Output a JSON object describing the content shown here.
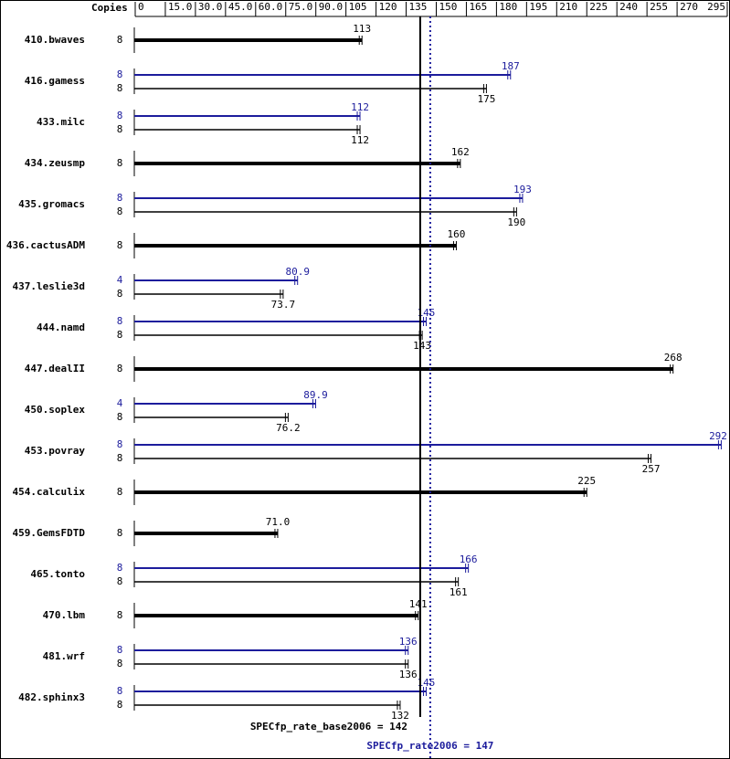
{
  "chart_data": {
    "type": "bar",
    "copies_label": "Copies",
    "categories": [
      "410.bwaves",
      "416.gamess",
      "433.milc",
      "434.zeusmp",
      "435.gromacs",
      "436.cactusADM",
      "437.leslie3d",
      "444.namd",
      "447.dealII",
      "450.soplex",
      "453.povray",
      "454.calculix",
      "459.GemsFDTD",
      "465.tonto",
      "470.lbm",
      "481.wrf",
      "482.sphinx3"
    ],
    "series": [
      {
        "color": "#1c1c9c",
        "copies": [
          null,
          8,
          8,
          null,
          8,
          null,
          4,
          8,
          null,
          4,
          8,
          null,
          null,
          8,
          null,
          8,
          8
        ],
        "values": [
          null,
          187,
          112,
          null,
          193,
          null,
          80.9,
          145,
          null,
          89.9,
          292,
          null,
          null,
          166,
          null,
          136,
          145
        ],
        "value_labels": [
          null,
          "187",
          "112",
          null,
          "193",
          null,
          "80.9",
          "145",
          null,
          "89.9",
          "292",
          null,
          null,
          "166",
          null,
          "136",
          "145"
        ]
      },
      {
        "color": "#000000",
        "copies": [
          8,
          8,
          8,
          8,
          8,
          8,
          8,
          8,
          8,
          8,
          8,
          8,
          8,
          8,
          8,
          8,
          8
        ],
        "values": [
          113,
          175,
          112,
          162,
          190,
          160,
          73.7,
          143,
          268,
          76.2,
          257,
          225,
          71,
          161,
          141,
          136,
          132
        ],
        "value_labels": [
          "113",
          "175",
          "112",
          "162",
          "190",
          "160",
          "73.7",
          "143",
          "268",
          "76.2",
          "257",
          "225",
          "71.0",
          "161",
          "141",
          "136",
          "132"
        ]
      }
    ],
    "xlim": [
      0,
      295
    ],
    "xticks": [
      0,
      {
        "value": 15,
        "label": "15.0"
      },
      {
        "value": 30,
        "label": "30.0"
      },
      {
        "value": 45,
        "label": "45.0"
      },
      {
        "value": 60,
        "label": "60.0"
      },
      {
        "value": 75,
        "label": "75.0"
      },
      {
        "value": 90,
        "label": "90.0"
      },
      105,
      120,
      135,
      150,
      165,
      180,
      195,
      210,
      225,
      240,
      255,
      270,
      295
    ],
    "reference_lines": [
      {
        "value": 142,
        "label": "SPECfp_rate_base2006 = 142",
        "color": "#000000",
        "style": "solid"
      },
      {
        "value": 147,
        "label": "SPECfp_rate2006 = 147",
        "color": "#1c1c9c",
        "style": "dotted"
      }
    ]
  }
}
